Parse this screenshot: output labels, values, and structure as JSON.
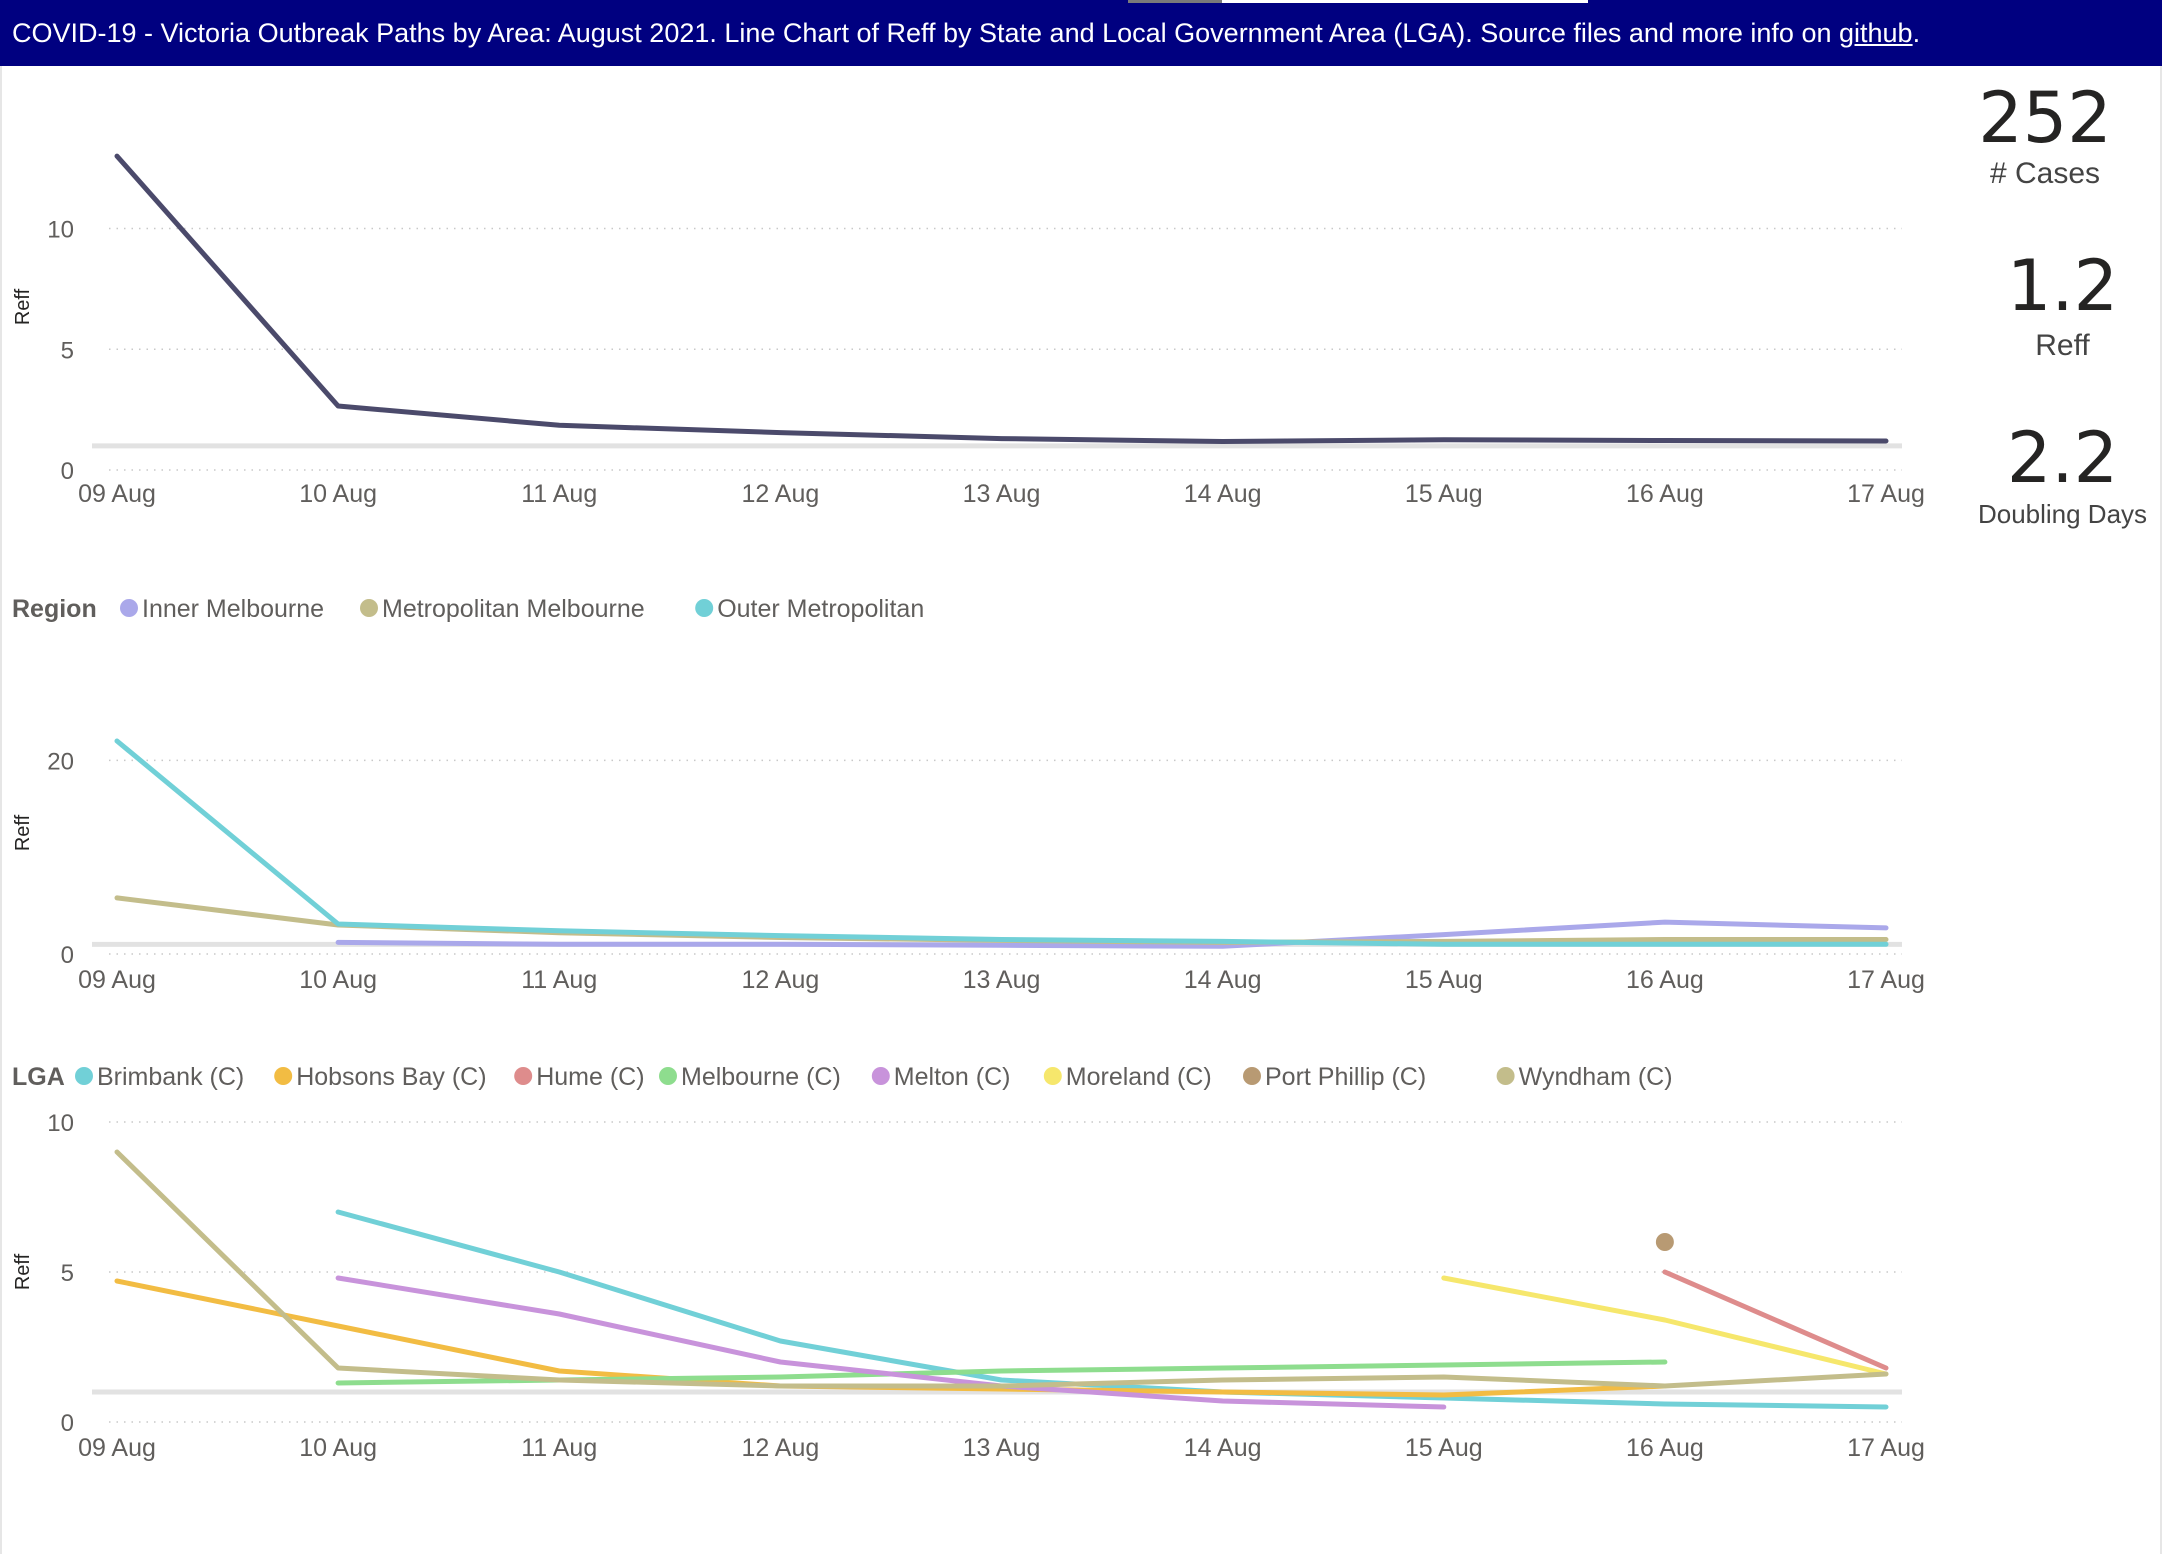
{
  "header": {
    "text": "COVID-19  - Victoria Outbreak Paths by Area: August 2021.  Line Chart of Reff by State and Local Government Area (LGA). Source files and more info on ",
    "link": "github",
    "suffix": "."
  },
  "cards": [
    {
      "value": "252",
      "label": "# Cases"
    },
    {
      "value": "1.2",
      "label": "Reff"
    },
    {
      "value": "2.2",
      "label": "Doubling Days"
    }
  ],
  "chart_data": [
    {
      "type": "line",
      "title": "",
      "xlabel": "",
      "ylabel": "Reff",
      "x": [
        "09 Aug",
        "10 Aug",
        "11 Aug",
        "12 Aug",
        "13 Aug",
        "14 Aug",
        "15 Aug",
        "16 Aug",
        "17 Aug"
      ],
      "yticks": [
        0,
        5,
        10
      ],
      "ylim": [
        0,
        13.5
      ],
      "reference_line": 1,
      "legend_title": "",
      "series": [
        {
          "color": "#4b4a6b",
          "values": [
            13.0,
            2.65,
            1.85,
            1.55,
            1.3,
            1.18,
            1.25,
            1.22,
            1.2
          ]
        }
      ]
    },
    {
      "type": "line",
      "title": "",
      "xlabel": "",
      "ylabel": "Reff",
      "x": [
        "09 Aug",
        "10 Aug",
        "11 Aug",
        "12 Aug",
        "13 Aug",
        "14 Aug",
        "15 Aug",
        "16 Aug",
        "17 Aug"
      ],
      "yticks": [
        0,
        20
      ],
      "ylim": [
        0,
        25
      ],
      "reference_line": 1,
      "legend_title": "Region",
      "legend_position": "top-left",
      "series": [
        {
          "name": "Inner Melbourne",
          "color": "#aaa8ea",
          "values": [
            null,
            1.2,
            1.0,
            1.0,
            0.9,
            0.8,
            2.0,
            3.3,
            2.7
          ]
        },
        {
          "name": "Metropolitan Melbourne",
          "color": "#c3bd8b",
          "values": [
            5.8,
            3.0,
            2.2,
            1.7,
            1.4,
            1.2,
            1.3,
            1.5,
            1.5
          ]
        },
        {
          "name": "Outer Metropolitan",
          "color": "#71d0d7",
          "values": [
            22.0,
            3.1,
            2.4,
            1.9,
            1.5,
            1.3,
            1.0,
            1.0,
            1.0
          ]
        }
      ]
    },
    {
      "type": "line",
      "title": "",
      "xlabel": "",
      "ylabel": "Reff",
      "x": [
        "09 Aug",
        "10 Aug",
        "11 Aug",
        "12 Aug",
        "13 Aug",
        "14 Aug",
        "15 Aug",
        "16 Aug",
        "17 Aug"
      ],
      "yticks": [
        0,
        5,
        10
      ],
      "ylim": [
        0,
        10
      ],
      "reference_line": 1,
      "legend_title": "LGA",
      "legend_position": "top-left",
      "series": [
        {
          "name": "Brimbank (C)",
          "color": "#71d0d7",
          "values": [
            null,
            7.0,
            5.0,
            2.7,
            1.4,
            1.0,
            0.8,
            0.6,
            0.5
          ]
        },
        {
          "name": "Hobsons Bay (C)",
          "color": "#f2bc43",
          "values": [
            4.7,
            3.2,
            1.7,
            1.2,
            1.1,
            1.0,
            0.9,
            1.2,
            null
          ]
        },
        {
          "name": "Hume (C)",
          "color": "#de8c8c",
          "values": [
            null,
            null,
            null,
            null,
            null,
            null,
            null,
            5.0,
            1.8
          ]
        },
        {
          "name": "Melbourne (C)",
          "color": "#8edd8e",
          "values": [
            null,
            1.3,
            1.4,
            1.5,
            1.7,
            1.8,
            1.9,
            2.0,
            null
          ]
        },
        {
          "name": "Melton (C)",
          "color": "#c893db",
          "values": [
            null,
            4.8,
            3.6,
            2.0,
            1.2,
            0.7,
            0.5,
            null,
            null
          ]
        },
        {
          "name": "Moreland (C)",
          "color": "#f6e76c",
          "values": [
            null,
            null,
            null,
            null,
            null,
            null,
            4.8,
            3.4,
            1.6
          ]
        },
        {
          "name": "Port Phillip (C)",
          "color": "#b89a73",
          "values": [
            null,
            null,
            null,
            null,
            null,
            null,
            null,
            6.0,
            null
          ]
        },
        {
          "name": "Wyndham (C)",
          "color": "#c3bd8b",
          "values": [
            9.0,
            1.8,
            1.4,
            1.2,
            1.2,
            1.4,
            1.5,
            1.2,
            1.6
          ]
        }
      ]
    }
  ]
}
